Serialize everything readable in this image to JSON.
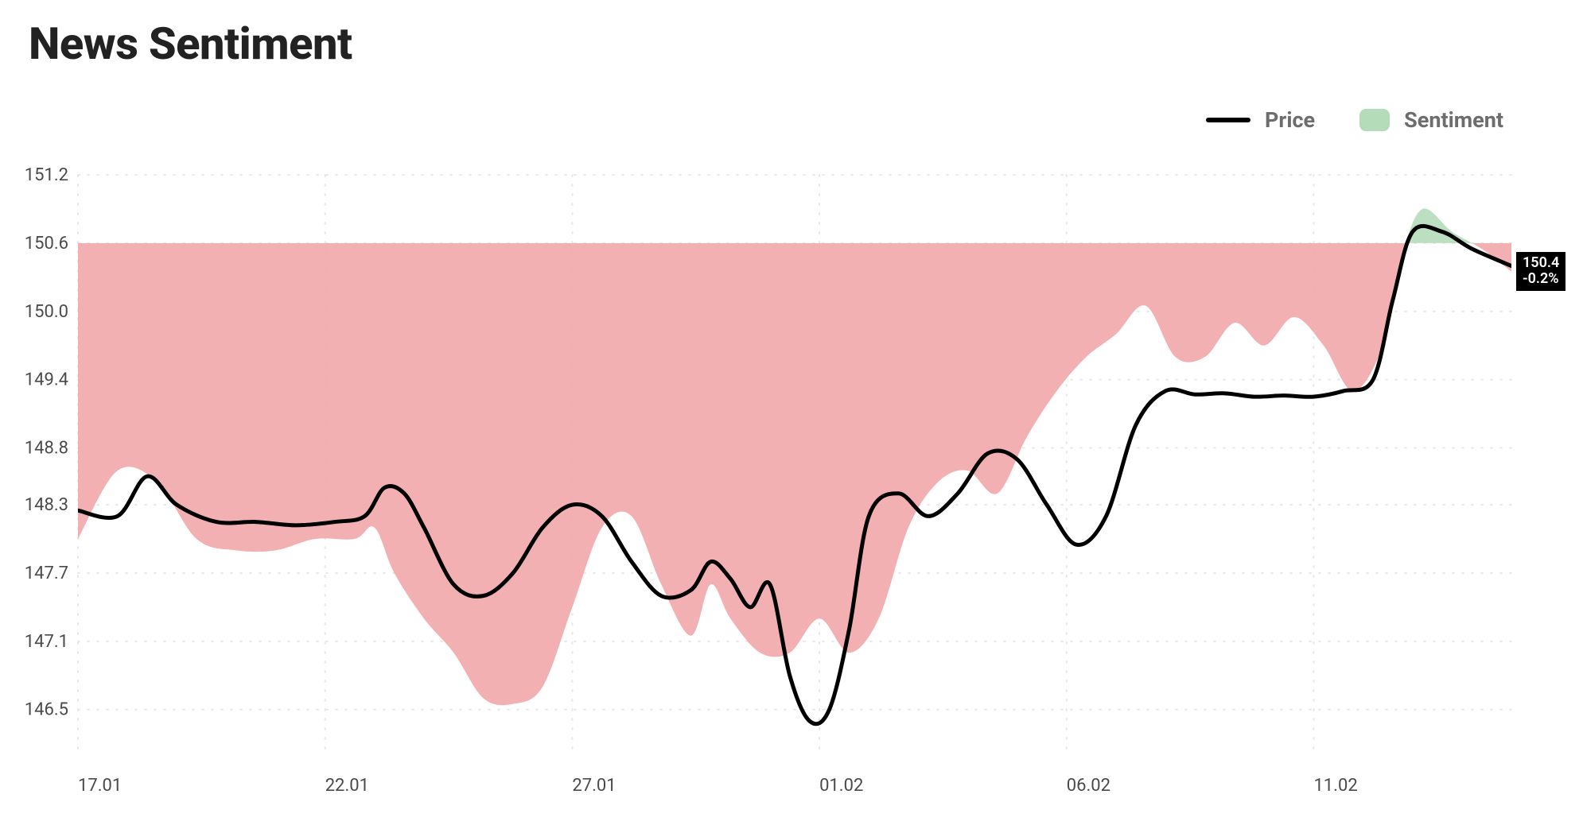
{
  "title": "News Sentiment",
  "legend": {
    "price_label": "Price",
    "sentiment_label": "Sentiment",
    "price_color": "#000000",
    "sentiment_swatch_color": "#b4dcb9"
  },
  "chart": {
    "type": "line-with-area",
    "background_color": "#ffffff",
    "grid_color": "#e8e8e8",
    "axis_label_color": "#4a4a4a",
    "axis_label_fontsize": 22,
    "y_axis": {
      "ticks": [
        146.5,
        147.1,
        147.7,
        148.3,
        148.8,
        149.4,
        150.0,
        150.6,
        151.2
      ],
      "min": 146.1,
      "max": 151.2
    },
    "x_axis": {
      "ticks": [
        "17.01",
        "22.01",
        "27.01",
        "01.02",
        "06.02",
        "11.02"
      ],
      "tick_positions": [
        0,
        5,
        10,
        15,
        20,
        25
      ],
      "min": 0,
      "max": 29
    },
    "baseline_value": 150.6,
    "sentiment_colors": {
      "below_baseline": "#f2a7aa",
      "above_baseline": "#b4dcb9",
      "opacity": 0.9
    },
    "price_line": {
      "color": "#000000",
      "width": 5
    },
    "sentiment_series": {
      "x": [
        0,
        0.8,
        1.6,
        2.4,
        3.2,
        4.0,
        4.8,
        5.6,
        6.0,
        6.4,
        7.0,
        7.6,
        8.2,
        8.8,
        9.4,
        10.0,
        10.6,
        11.2,
        11.8,
        12.4,
        12.8,
        13.2,
        13.8,
        14.4,
        15.0,
        15.6,
        16.2,
        16.8,
        17.4,
        18.0,
        18.6,
        19.2,
        19.8,
        20.4,
        21.0,
        21.6,
        22.2,
        22.8,
        23.4,
        24.0,
        24.6,
        25.2,
        25.8,
        26.4,
        26.8,
        27.2,
        27.8,
        28.4,
        29.0
      ],
      "y": [
        148.0,
        148.6,
        148.5,
        148.0,
        147.9,
        147.9,
        148.0,
        148.0,
        148.1,
        147.7,
        147.3,
        147.0,
        146.6,
        146.55,
        146.7,
        147.4,
        148.1,
        148.2,
        147.6,
        147.15,
        147.6,
        147.3,
        147.0,
        147.0,
        147.3,
        147.0,
        147.3,
        148.1,
        148.5,
        148.6,
        148.4,
        148.9,
        149.3,
        149.6,
        149.8,
        150.05,
        149.6,
        149.6,
        149.9,
        149.7,
        149.95,
        149.7,
        149.3,
        149.7,
        150.5,
        150.9,
        150.7,
        150.55,
        150.35
      ]
    },
    "price_series": {
      "x": [
        0,
        0.8,
        1.4,
        2.0,
        2.8,
        3.6,
        4.4,
        5.2,
        5.8,
        6.2,
        6.6,
        7.0,
        7.6,
        8.2,
        8.8,
        9.4,
        10.0,
        10.6,
        11.2,
        11.8,
        12.4,
        12.8,
        13.2,
        13.6,
        14.0,
        14.4,
        14.8,
        15.2,
        15.6,
        16.0,
        16.6,
        17.2,
        17.8,
        18.4,
        19.0,
        19.6,
        20.2,
        20.8,
        21.4,
        22.0,
        22.6,
        23.2,
        23.8,
        24.4,
        25.0,
        25.6,
        26.2,
        26.6,
        27.0,
        27.6,
        28.2,
        29.0
      ],
      "y": [
        148.25,
        148.2,
        148.55,
        148.3,
        148.15,
        148.15,
        148.12,
        148.15,
        148.2,
        148.45,
        148.4,
        148.1,
        147.6,
        147.5,
        147.7,
        148.1,
        148.3,
        148.2,
        147.8,
        147.5,
        147.55,
        147.8,
        147.65,
        147.4,
        147.6,
        146.8,
        146.4,
        146.5,
        147.2,
        148.2,
        148.4,
        148.2,
        148.4,
        148.75,
        148.7,
        148.3,
        147.95,
        148.2,
        149.0,
        149.3,
        149.27,
        149.28,
        149.25,
        149.26,
        149.25,
        149.3,
        149.4,
        150.1,
        150.7,
        150.7,
        150.55,
        150.4
      ]
    },
    "tooltip": {
      "value": "150.4",
      "change": "-0.2%",
      "bg": "#000000",
      "fg": "#ffffff"
    }
  }
}
